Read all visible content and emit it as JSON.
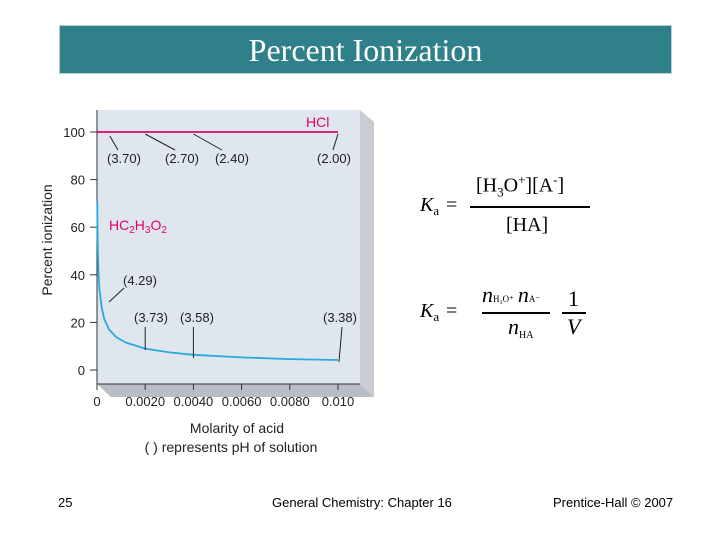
{
  "slide": {
    "title": "Percent Ionization",
    "page_number": "25",
    "footer_center": "General Chemistry: Chapter 16",
    "footer_right": "Prentice-Hall © 2007"
  },
  "colors": {
    "title_bar": "#2f8088",
    "hcl_line": "#e2006e",
    "acetic_curve": "#29a9e0",
    "plot_bg": "#dfe6ee"
  },
  "chart_data": {
    "type": "line",
    "xlabel": "Molarity of acid",
    "xlabel_note": "( ) represents pH of solution",
    "ylabel": "Percent ionization",
    "xlim": [
      0,
      0.01
    ],
    "ylim": [
      0,
      100
    ],
    "x_ticks": [
      "0",
      "0.0020",
      "0.0040",
      "0.0060",
      "0.0080",
      "0.010"
    ],
    "y_ticks": [
      "0",
      "20",
      "40",
      "60",
      "80",
      "100"
    ],
    "grid": false,
    "series": [
      {
        "name": "HCl",
        "x": [
          2e-05,
          0.002,
          0.004,
          0.006,
          0.008,
          0.01
        ],
        "y": [
          100,
          100,
          100,
          100,
          100,
          100
        ]
      },
      {
        "name": "HC2H3O2",
        "x": [
          1e-05,
          3e-05,
          6e-05,
          0.0001,
          0.0002,
          0.0003,
          0.0005,
          0.0008,
          0.0012,
          0.002,
          0.003,
          0.004,
          0.006,
          0.008,
          0.01
        ],
        "y": [
          71,
          53,
          42,
          34,
          26,
          21.5,
          17,
          13.8,
          11.5,
          9,
          7.4,
          6.4,
          5.3,
          4.6,
          4.2
        ]
      }
    ],
    "annotations": [
      {
        "text": "(3.70)",
        "series": "HCl",
        "x": 0.0002,
        "y": 100
      },
      {
        "text": "(2.70)",
        "series": "HCl",
        "x": 0.002,
        "y": 100
      },
      {
        "text": "(2.40)",
        "series": "HCl",
        "x": 0.004,
        "y": 100
      },
      {
        "text": "(2.00)",
        "series": "HCl",
        "x": 0.01,
        "y": 100
      },
      {
        "text": "(4.29)",
        "series": "HC2H3O2",
        "x": 0.0002,
        "y": 32
      },
      {
        "text": "(3.73)",
        "series": "HC2H3O2",
        "x": 0.002,
        "y": 9
      },
      {
        "text": "(3.58)",
        "series": "HC2H3O2",
        "x": 0.004,
        "y": 6.4
      },
      {
        "text": "(3.38)",
        "series": "HC2H3O2",
        "x": 0.01,
        "y": 4.2
      }
    ]
  },
  "equations": {
    "eq1": {
      "lhs_k": "K",
      "lhs_sub": "a",
      "equals": "=",
      "numerator": "[H",
      "num_sub": "3",
      "num_rest": "O",
      "num_sup": "+",
      "num_after": "][A",
      "num_sup2": "-",
      "num_close": "]",
      "denominator": "[HA]"
    },
    "eq2": {
      "lhs_k": "K",
      "lhs_sub": "a",
      "equals": "=",
      "n1": "n",
      "n1_sub": "H₃O⁺",
      "n2": "n",
      "n2_sub": "A⁻",
      "den_n": "n",
      "den_sub": "HA",
      "frac2_num": "1",
      "frac2_den": "V"
    }
  }
}
